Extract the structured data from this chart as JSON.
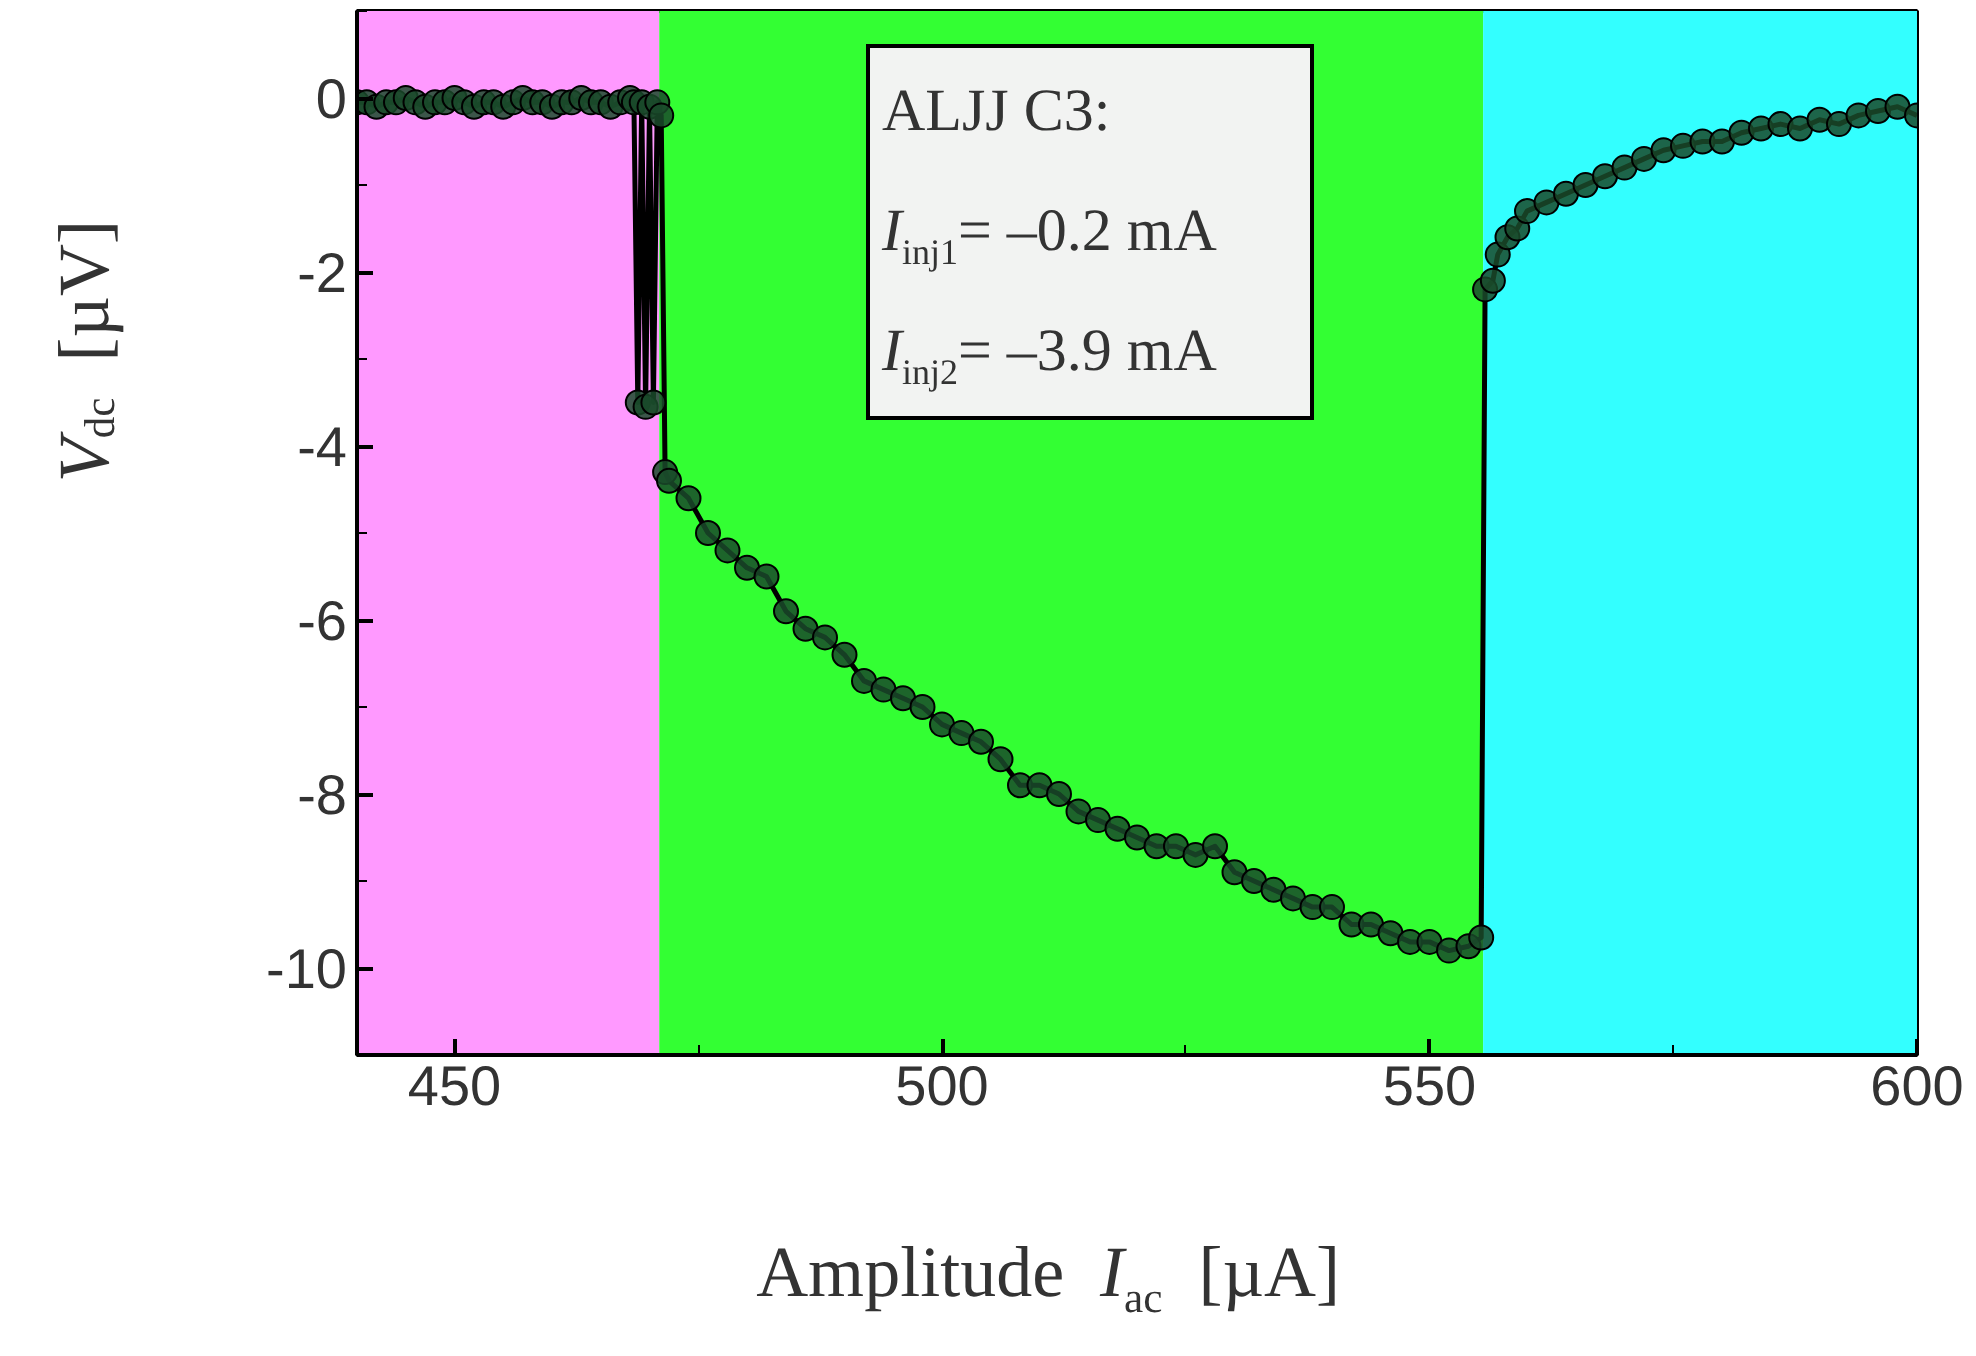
{
  "chart_data": {
    "type": "line",
    "xlabel": "Amplitude  I$_{ac}$  [µA]",
    "ylabel": "V$_{dc}$  [µV]",
    "annotations": [
      "ALJJ C3:",
      "I$_{inj1}$= –0.2 mA",
      "I$_{inj2}$= –3.9 mA"
    ],
    "xlim": [
      440,
      600
    ],
    "ylim": [
      -11,
      1
    ],
    "xticks": [
      450,
      500,
      550,
      600
    ],
    "yticks": [
      0,
      -2,
      -4,
      -6,
      -8,
      -10
    ],
    "marker": "circle",
    "line_style": "solid",
    "bands": [
      {
        "axis": "x",
        "from": 440,
        "to": 471,
        "color": "#ff99ff"
      },
      {
        "axis": "x",
        "from": 471,
        "to": 555.5,
        "color": "#33ff33"
      },
      {
        "axis": "x",
        "from": 555.5,
        "to": 600,
        "color": "#33ffff"
      }
    ],
    "series": [
      {
        "color": "#1a4a2a",
        "x": [
          440,
          441,
          442,
          443,
          444,
          445,
          446,
          447,
          448,
          449,
          450,
          451,
          452,
          453,
          454,
          455,
          456,
          457,
          458,
          459,
          460,
          461,
          462,
          463,
          464,
          465,
          466,
          467,
          468,
          468.4,
          468.8,
          469.2,
          469.6,
          470,
          470.4,
          470.8,
          471.2,
          471.6,
          472,
          474,
          476,
          478,
          480,
          482,
          484,
          486,
          488,
          490,
          492,
          494,
          496,
          498,
          500,
          502,
          504,
          506,
          508,
          510,
          512,
          514,
          516,
          518,
          520,
          522,
          524,
          526,
          528,
          530,
          532,
          534,
          536,
          538,
          540,
          542,
          544,
          546,
          548,
          550,
          552,
          554,
          555.3,
          555.7,
          556.5,
          557,
          558,
          559,
          560,
          562,
          564,
          566,
          568,
          570,
          572,
          574,
          576,
          578,
          580,
          582,
          584,
          586,
          588,
          590,
          592,
          594,
          596,
          598,
          600
        ],
        "values": [
          -0.05,
          -0.05,
          -0.1,
          -0.05,
          -0.05,
          0,
          -0.05,
          -0.1,
          -0.05,
          -0.05,
          0,
          -0.05,
          -0.1,
          -0.05,
          -0.05,
          -0.1,
          -0.05,
          0,
          -0.05,
          -0.05,
          -0.1,
          -0.05,
          -0.05,
          0,
          -0.05,
          -0.05,
          -0.1,
          -0.05,
          0,
          -0.05,
          -3.5,
          -0.05,
          -3.55,
          -0.1,
          -3.5,
          -0.05,
          -0.2,
          -4.3,
          -4.4,
          -4.6,
          -5.0,
          -5.2,
          -5.4,
          -5.5,
          -5.9,
          -6.1,
          -6.2,
          -6.4,
          -6.7,
          -6.8,
          -6.9,
          -7.0,
          -7.2,
          -7.3,
          -7.4,
          -7.6,
          -7.9,
          -7.9,
          -8.0,
          -8.2,
          -8.3,
          -8.4,
          -8.5,
          -8.6,
          -8.6,
          -8.7,
          -8.6,
          -8.9,
          -9.0,
          -9.1,
          -9.2,
          -9.3,
          -9.3,
          -9.5,
          -9.5,
          -9.6,
          -9.7,
          -9.7,
          -9.8,
          -9.75,
          -9.65,
          -2.2,
          -2.1,
          -1.8,
          -1.6,
          -1.5,
          -1.3,
          -1.2,
          -1.1,
          -1.0,
          -0.9,
          -0.8,
          -0.7,
          -0.6,
          -0.55,
          -0.5,
          -0.5,
          -0.4,
          -0.35,
          -0.3,
          -0.35,
          -0.25,
          -0.3,
          -0.2,
          -0.15,
          -0.1,
          -0.2
        ]
      }
    ]
  }
}
